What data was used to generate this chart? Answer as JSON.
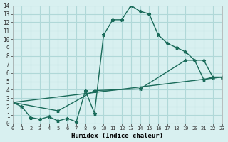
{
  "xlabel": "Humidex (Indice chaleur)",
  "ylabel": "",
  "bg_color": "#d8f0f0",
  "grid_color": "#b0d8d8",
  "line_color": "#1a6b5a",
  "xlim": [
    0,
    23
  ],
  "ylim": [
    0,
    14
  ],
  "xticks": [
    0,
    1,
    2,
    3,
    4,
    5,
    6,
    7,
    8,
    9,
    10,
    11,
    12,
    13,
    14,
    15,
    16,
    17,
    18,
    19,
    20,
    21,
    22,
    23
  ],
  "yticks": [
    0,
    1,
    2,
    3,
    4,
    5,
    6,
    7,
    8,
    9,
    10,
    11,
    12,
    13,
    14
  ],
  "line1_x": [
    0,
    1,
    2,
    3,
    4,
    5,
    6,
    7,
    8,
    9,
    10,
    11,
    12,
    13,
    14,
    15,
    16,
    17,
    18,
    19,
    20,
    21,
    22,
    23
  ],
  "line1_y": [
    2.5,
    2.0,
    0.7,
    0.5,
    0.8,
    0.3,
    0.6,
    0.2,
    3.9,
    1.2,
    10.5,
    12.3,
    12.3,
    14.0,
    13.3,
    13.0,
    10.5,
    9.5,
    9.0,
    8.5,
    7.5,
    5.2,
    5.5,
    5.5
  ],
  "line2_x": [
    0,
    5,
    9,
    14,
    19,
    21,
    22,
    23
  ],
  "line2_y": [
    2.5,
    1.5,
    3.9,
    4.1,
    7.5,
    7.5,
    5.5,
    5.5
  ],
  "line3_x": [
    0,
    23
  ],
  "line3_y": [
    2.5,
    5.5
  ]
}
